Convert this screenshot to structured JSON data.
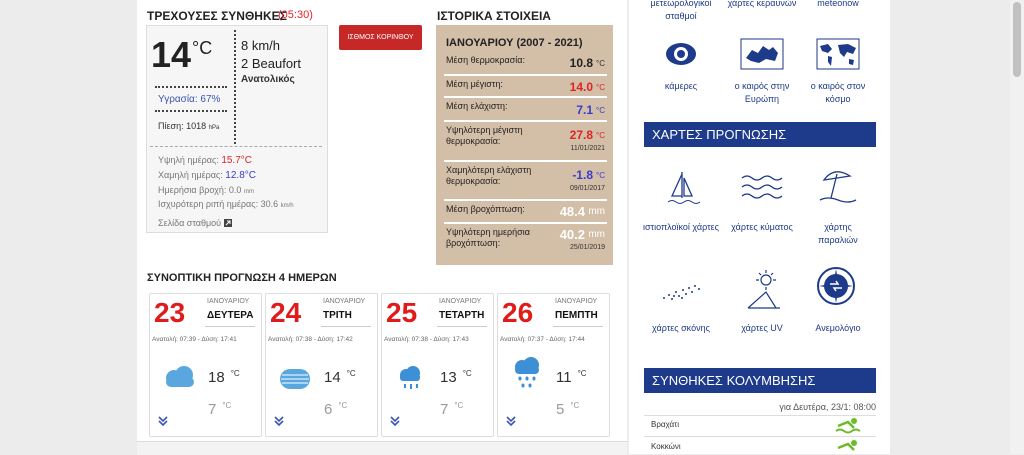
{
  "current": {
    "title": "ΤΡΕΧΟΥΣΕΣ ΣΥΝΘΗΚΕΣ",
    "time": "(05:30)",
    "temp": "14",
    "temp_unit": "°C",
    "wind_speed": "8 km/h",
    "wind_beaufort": "2 Beaufort",
    "wind_dir": "Ανατολικός",
    "humidity": "Υγρασία: 67%",
    "pressure": "Πίεση: 1018",
    "pressure_unit": "hPa",
    "details": [
      {
        "label": "Υψηλή ημέρας:",
        "value": "15.7°C"
      },
      {
        "label": "Χαμηλή ημέρας:",
        "value": "12.8°C"
      },
      {
        "label": "Ημερήσια βροχή: 0.0",
        "unit": "mm"
      },
      {
        "label": "Ισχυρότερη ριπή ημέρας: 30.6",
        "unit": "km/h"
      }
    ],
    "station_link": "Σελίδα σταθμού"
  },
  "station_button": "ΙΣΘΜΟΣ ΚΟΡΙΝΘΟΥ",
  "history": {
    "title": "ΙΣΤΟΡΙΚΑ ΣΤΟΙΧΕΙΑ",
    "header": "ΙΑΝΟΥΑΡΙΟΥ (2007 - 2021)",
    "rows": [
      {
        "label": "Μέση θερμοκρασία:",
        "value": "10.8",
        "unit": "°C"
      },
      {
        "label": "Μέση μέγιστη:",
        "value": "14.0",
        "unit": "°C"
      },
      {
        "label": "Μέση ελάχιστη:",
        "value": "7.1",
        "unit": "°C"
      },
      {
        "label": "Υψηλότερη μέγιστη θερμοκρασία:",
        "value": "27.8",
        "unit": "°C",
        "date": "11/01/2021"
      },
      {
        "label": "Χαμηλότερη ελάχιστη θερμοκρασία:",
        "value": "-1.8",
        "unit": "°C",
        "date": "09/01/2017"
      },
      {
        "label": "Μέση βροχόπτωση:",
        "value": "48.4",
        "unit": "mm"
      },
      {
        "label": "Υψηλότερη ημερήσια βροχόπτωση:",
        "value": "40.2",
        "unit": "mm",
        "date": "25/01/2019"
      }
    ]
  },
  "forecast": {
    "title": "ΣΥΝΟΠΤΙΚΗ ΠΡΟΓΝΩΣΗ 4 ΗΜΕΡΩΝ",
    "unit": "°C",
    "days": [
      {
        "num": "23",
        "month": "ΙΑΝΟΥΑΡΙΟΥ",
        "day": "ΔΕΥΤΕΡΑ",
        "sun": "Ανατολή: 07:39 - Δύση: 17:41",
        "high": "18",
        "low": "7"
      },
      {
        "num": "24",
        "month": "ΙΑΝΟΥΑΡΙΟΥ",
        "day": "ΤΡΙΤΗ",
        "sun": "Ανατολή: 07:38 - Δύση: 17:42",
        "high": "14",
        "low": "6"
      },
      {
        "num": "25",
        "month": "ΙΑΝΟΥΑΡΙΟΥ",
        "day": "ΤΕΤΑΡΤΗ",
        "sun": "Ανατολή: 07:38 - Δύση: 17:43",
        "high": "13",
        "low": "7"
      },
      {
        "num": "26",
        "month": "ΙΑΝΟΥΑΡΙΟΥ",
        "day": "ΠΕΜΠΤΗ",
        "sun": "Ανατολή: 07:37 - Δύση: 17:44",
        "high": "11",
        "low": "5"
      }
    ]
  },
  "sidebar": {
    "top_links": [
      "μετεωρολογικοί σταθμοί",
      "χάρτες κεραυνών",
      "meteonow"
    ],
    "links": [
      "κάμερες",
      "ο καιρός στην Ευρώπη",
      "ο καιρός στον κόσμο"
    ],
    "maps_title": "ΧΑΡΤΕΣ ΠΡΟΓΝΩΣΗΣ",
    "maps": [
      "ιστιοπλοϊκοί χάρτες",
      "χάρτες κύματος",
      "χάρτης παραλιών",
      "χάρτες σκόνης",
      "χάρτες UV",
      "Ανεμολόγιο"
    ],
    "swim_title": "ΣΥΝΘΗΚΕΣ ΚΟΛΥΜΒΗΣΗΣ",
    "swim_date": "για Δευτέρα, 23/1: 08:00",
    "beaches": [
      "Βραχάτι",
      "Κοκκώνι"
    ]
  }
}
